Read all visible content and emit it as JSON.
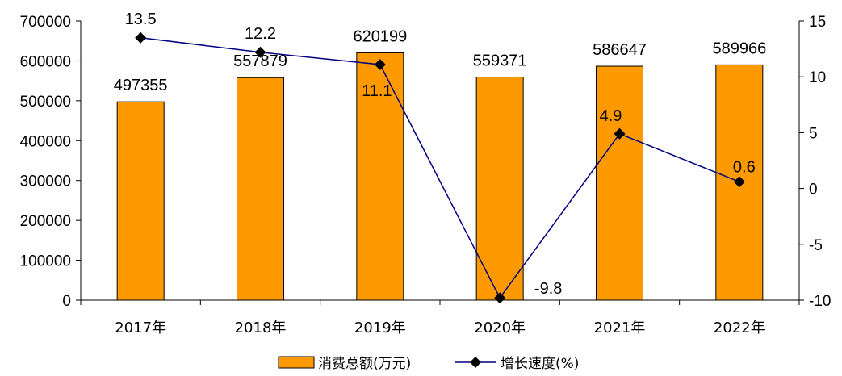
{
  "chart_data": {
    "type": "bar+line",
    "categories": [
      "2017年",
      "2018年",
      "2019年",
      "2020年",
      "2021年",
      "2022年"
    ],
    "series": [
      {
        "name": "消费总额(万元)",
        "type": "bar",
        "axis": "left",
        "values": [
          497355,
          557879,
          620199,
          559371,
          586647,
          589966
        ],
        "color": "#FF9900"
      },
      {
        "name": "增长速度(%)",
        "type": "line",
        "axis": "right",
        "values": [
          13.5,
          12.2,
          11.1,
          -9.8,
          4.9,
          0.6
        ],
        "color": "#000080"
      }
    ],
    "y_left": {
      "min": 0,
      "max": 700000,
      "ticks": [
        0,
        100000,
        200000,
        300000,
        400000,
        500000,
        600000,
        700000
      ]
    },
    "y_right": {
      "min": -10,
      "max": 15,
      "ticks": [
        -10,
        -5,
        0,
        5,
        10,
        15
      ]
    },
    "grid": false,
    "legend": "bottom-center"
  }
}
